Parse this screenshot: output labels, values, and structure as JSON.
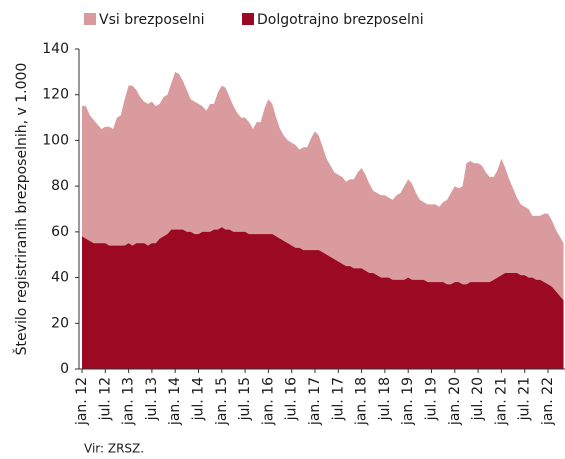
{
  "chart_data": {
    "type": "area",
    "ylabel": "Število registriranih brezposelnih, v 1.000",
    "source": "Vir: ZRSZ.",
    "categories": [
      "jan. 12",
      null,
      null,
      null,
      null,
      null,
      "jul. 12",
      null,
      null,
      null,
      null,
      null,
      "jan. 13",
      null,
      null,
      null,
      null,
      null,
      "jul. 13",
      null,
      null,
      null,
      null,
      null,
      "jan. 14",
      null,
      null,
      null,
      null,
      null,
      "jul. 14",
      null,
      null,
      null,
      null,
      null,
      "jan. 15",
      null,
      null,
      null,
      null,
      null,
      "jul. 15",
      null,
      null,
      null,
      null,
      null,
      "jan. 16",
      null,
      null,
      null,
      null,
      null,
      "jul. 16",
      null,
      null,
      null,
      null,
      null,
      "jan. 17",
      null,
      null,
      null,
      null,
      null,
      "jul. 17",
      null,
      null,
      null,
      null,
      null,
      "jan. 18",
      null,
      null,
      null,
      null,
      null,
      "jul. 18",
      null,
      null,
      null,
      null,
      null,
      "jan. 19",
      null,
      null,
      null,
      null,
      null,
      "jul. 19",
      null,
      null,
      null,
      null,
      null,
      "jan. 20",
      null,
      null,
      null,
      null,
      null,
      "jul. 20",
      null,
      null,
      null,
      null,
      null,
      "jan. 21",
      null,
      null,
      null,
      null,
      null,
      "jul. 21",
      null,
      null,
      null,
      null,
      null,
      "jan. 22",
      null,
      null,
      null,
      null
    ],
    "series": [
      {
        "name": "Vsi brezposelni",
        "color": "#d99b9d",
        "values": [
          115,
          115,
          111,
          109,
          107,
          105,
          106,
          106,
          105,
          110,
          111,
          118,
          124,
          124,
          122,
          119,
          117,
          116,
          117,
          115,
          116,
          119,
          120,
          125,
          130,
          129,
          126,
          122,
          118,
          117,
          116,
          115,
          113,
          116,
          116,
          121,
          124,
          123,
          119,
          115,
          112,
          110,
          110,
          108,
          105,
          108,
          108,
          114,
          118,
          116,
          110,
          105,
          102,
          100,
          99,
          98,
          96,
          97,
          97,
          101,
          104,
          102,
          97,
          92,
          89,
          86,
          85,
          84,
          82,
          83,
          83,
          86,
          88,
          85,
          81,
          78,
          77,
          76,
          76,
          75,
          74,
          76,
          77,
          80,
          83,
          81,
          77,
          74,
          73,
          72,
          72,
          72,
          71,
          73,
          74,
          77,
          80,
          79,
          80,
          90,
          91,
          90,
          90,
          89,
          86,
          84,
          84,
          87,
          92,
          88,
          83,
          79,
          75,
          72,
          71,
          70,
          67,
          67,
          67,
          68,
          68,
          65,
          61,
          58,
          55
        ]
      },
      {
        "name": "Dolgotrajno brezposelni",
        "color": "#9b0a22",
        "values": [
          58,
          57,
          56,
          55,
          55,
          55,
          55,
          54,
          54,
          54,
          54,
          54,
          55,
          54,
          55,
          55,
          55,
          54,
          55,
          55,
          57,
          58,
          59,
          61,
          61,
          61,
          61,
          60,
          60,
          59,
          59,
          60,
          60,
          60,
          61,
          61,
          62,
          61,
          61,
          60,
          60,
          60,
          60,
          59,
          59,
          59,
          59,
          59,
          59,
          59,
          58,
          57,
          56,
          55,
          54,
          53,
          53,
          52,
          52,
          52,
          52,
          52,
          51,
          50,
          49,
          48,
          47,
          46,
          45,
          45,
          44,
          44,
          44,
          43,
          42,
          42,
          41,
          40,
          40,
          40,
          39,
          39,
          39,
          39,
          40,
          39,
          39,
          39,
          39,
          38,
          38,
          38,
          38,
          38,
          37,
          37,
          38,
          38,
          37,
          37,
          38,
          38,
          38,
          38,
          38,
          38,
          39,
          40,
          41,
          42,
          42,
          42,
          42,
          41,
          41,
          40,
          40,
          39,
          39,
          38,
          37,
          36,
          34,
          32,
          30
        ]
      }
    ],
    "ylim": [
      0,
      140
    ],
    "yticks": [
      0,
      20,
      40,
      60,
      80,
      100,
      120,
      140
    ],
    "grid": false
  }
}
